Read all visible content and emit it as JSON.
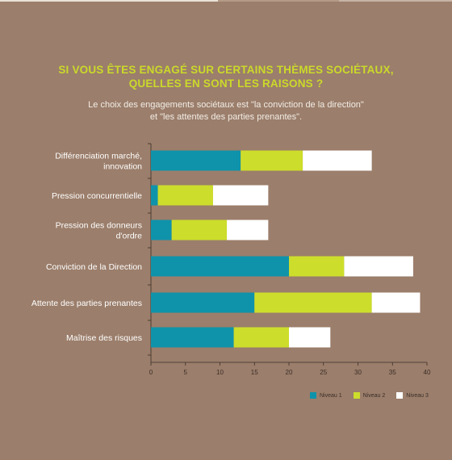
{
  "header": {
    "title_line1": "SI VOUS ÊTES ENGAGÉ SUR CERTAINS THÈMES SOCIÉTAUX,",
    "title_line2": "QUELLES EN SONT LES RAISONS ?",
    "subtitle_line1": "Le choix des engagements sociétaux est \"la conviction de la direction\"",
    "subtitle_line2": "et \"les attentes des parties prenantes\"."
  },
  "colors": {
    "background": "#9b7e6b",
    "title": "#cbd92a",
    "niveau1": "#0f93aa",
    "niveau2": "#cddd2b",
    "niveau3": "#ffffff"
  },
  "chart_data": {
    "type": "bar",
    "orientation": "horizontal",
    "stacked": true,
    "categories": [
      [
        "Différenciation marché,",
        "innovation"
      ],
      [
        "Pression concurrentielle"
      ],
      [
        "Pression des donneurs",
        "d'ordre"
      ],
      [
        "Conviction de la Direction"
      ],
      [
        "Attente des parties prenantes"
      ],
      [
        "Maîtrise des risques"
      ]
    ],
    "series": [
      {
        "name": "Niveau 1",
        "values": [
          13,
          1,
          3,
          20,
          15,
          12
        ]
      },
      {
        "name": "Niveau 2",
        "values": [
          9,
          8,
          8,
          8,
          17,
          8
        ]
      },
      {
        "name": "Niveau 3",
        "values": [
          10,
          8,
          6,
          10,
          7,
          6
        ]
      }
    ],
    "xlim": [
      0,
      40
    ],
    "xticks": [
      "0",
      "5",
      "10",
      "15",
      "20",
      "25",
      "30",
      "35",
      "40"
    ],
    "grid": false,
    "legend_position": "bottom-right"
  }
}
